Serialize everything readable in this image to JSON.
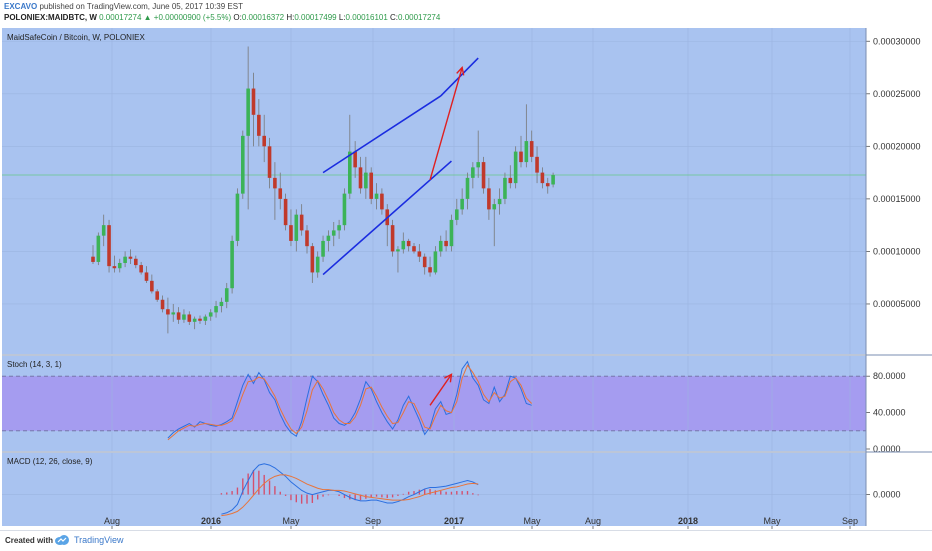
{
  "header": {
    "author": "EXCAVO",
    "published_text": "published on TradingView.com, June 05, 2017 10:39 EST",
    "symbol_info": "POLONIEX:MAIDBTC, W",
    "last": "0.00017274",
    "change": "▲ +0.00000900 (+5.5%)",
    "open_label": "O:",
    "open": "0.00016372",
    "high_label": "H:",
    "high": "0.00017499",
    "low_label": "L:",
    "low": "0.00016101",
    "close_label": "C:",
    "close": "0.00017274"
  },
  "footer": {
    "created_with": "Created with",
    "brand": "TradingView"
  },
  "chart_data": [
    {
      "type": "candlestick",
      "title": "MaidSafeCoin / Bitcoin, W, POLONIEX",
      "x_tick_labels": [
        "Aug",
        "2016",
        "May",
        "Sep",
        "2017",
        "May",
        "Aug",
        "2018",
        "May",
        "Sep"
      ],
      "y_tick_labels": [
        "0.00030000",
        "0.00025000",
        "0.00020000",
        "0.00015000",
        "0.00010000",
        "0.00005000"
      ],
      "ylim": [
        1e-05,
        0.000305
      ],
      "current_price_line": 0.00017274,
      "weeks": [
        {
          "o": 9.5e-05,
          "h": 0.000106,
          "l": 8.8e-05,
          "c": 9e-05
        },
        {
          "o": 9e-05,
          "h": 0.000118,
          "l": 8.7e-05,
          "c": 0.000115
        },
        {
          "o": 0.000115,
          "h": 0.000135,
          "l": 0.000105,
          "c": 0.000125
        },
        {
          "o": 0.000125,
          "h": 0.00013,
          "l": 8e-05,
          "c": 8.6e-05
        },
        {
          "o": 8.6e-05,
          "h": 9.6e-05,
          "l": 8e-05,
          "c": 8.4e-05
        },
        {
          "o": 8.4e-05,
          "h": 9.3e-05,
          "l": 8e-05,
          "c": 8.9e-05
        },
        {
          "o": 8.9e-05,
          "h": 0.0001,
          "l": 8.5e-05,
          "c": 9.5e-05
        },
        {
          "o": 9.5e-05,
          "h": 0.000102,
          "l": 8.8e-05,
          "c": 9.3e-05
        },
        {
          "o": 9.3e-05,
          "h": 9.6e-05,
          "l": 8.4e-05,
          "c": 8.7e-05
        },
        {
          "o": 8.7e-05,
          "h": 9e-05,
          "l": 7.8e-05,
          "c": 8e-05
        },
        {
          "o": 8e-05,
          "h": 8.6e-05,
          "l": 7e-05,
          "c": 7.2e-05
        },
        {
          "o": 7.2e-05,
          "h": 7.8e-05,
          "l": 6e-05,
          "c": 6.2e-05
        },
        {
          "o": 6.2e-05,
          "h": 6.4e-05,
          "l": 5.2e-05,
          "c": 5.4e-05
        },
        {
          "o": 5.4e-05,
          "h": 5.8e-05,
          "l": 4.2e-05,
          "c": 4.5e-05
        },
        {
          "o": 4.5e-05,
          "h": 5.6e-05,
          "l": 2.2e-05,
          "c": 4e-05
        },
        {
          "o": 4e-05,
          "h": 5e-05,
          "l": 3.3e-05,
          "c": 4.2e-05
        },
        {
          "o": 4.2e-05,
          "h": 4.7e-05,
          "l": 3.1e-05,
          "c": 3.5e-05
        },
        {
          "o": 3.5e-05,
          "h": 4.5e-05,
          "l": 3.2e-05,
          "c": 4e-05
        },
        {
          "o": 4e-05,
          "h": 4.3e-05,
          "l": 3e-05,
          "c": 3.3e-05
        },
        {
          "o": 3.3e-05,
          "h": 3.8e-05,
          "l": 2.6e-05,
          "c": 3.6e-05
        },
        {
          "o": 3.6e-05,
          "h": 3.9e-05,
          "l": 3.1e-05,
          "c": 3.4e-05
        },
        {
          "o": 3.4e-05,
          "h": 4e-05,
          "l": 3e-05,
          "c": 3.8e-05
        },
        {
          "o": 3.8e-05,
          "h": 4.5e-05,
          "l": 3.4e-05,
          "c": 4.2e-05
        },
        {
          "o": 4.2e-05,
          "h": 5.3e-05,
          "l": 3.7e-05,
          "c": 4.8e-05
        },
        {
          "o": 4.8e-05,
          "h": 5.6e-05,
          "l": 4.2e-05,
          "c": 5.2e-05
        },
        {
          "o": 5.2e-05,
          "h": 7e-05,
          "l": 4.6e-05,
          "c": 6.5e-05
        },
        {
          "o": 6.5e-05,
          "h": 0.000115,
          "l": 6e-05,
          "c": 0.00011
        },
        {
          "o": 0.00011,
          "h": 0.00016,
          "l": 0.000105,
          "c": 0.000155
        },
        {
          "o": 0.000155,
          "h": 0.000215,
          "l": 0.00015,
          "c": 0.00021
        },
        {
          "o": 0.00021,
          "h": 0.000295,
          "l": 0.00014,
          "c": 0.000255
        },
        {
          "o": 0.000255,
          "h": 0.00027,
          "l": 0.0002,
          "c": 0.00023
        },
        {
          "o": 0.00023,
          "h": 0.000245,
          "l": 0.0002,
          "c": 0.00021
        },
        {
          "o": 0.00021,
          "h": 0.00023,
          "l": 0.000185,
          "c": 0.0002
        },
        {
          "o": 0.0002,
          "h": 0.000208,
          "l": 0.00016,
          "c": 0.00017
        },
        {
          "o": 0.00017,
          "h": 0.000185,
          "l": 0.00013,
          "c": 0.00016
        },
        {
          "o": 0.00016,
          "h": 0.000175,
          "l": 0.00014,
          "c": 0.00015
        },
        {
          "o": 0.00015,
          "h": 0.000155,
          "l": 0.00012,
          "c": 0.000125
        },
        {
          "o": 0.000125,
          "h": 0.00014,
          "l": 0.000105,
          "c": 0.00011
        },
        {
          "o": 0.00011,
          "h": 0.00014,
          "l": 0.0001,
          "c": 0.000135
        },
        {
          "o": 0.000135,
          "h": 0.000145,
          "l": 0.000115,
          "c": 0.00012
        },
        {
          "o": 0.00012,
          "h": 0.000125,
          "l": 9.8e-05,
          "c": 0.000105
        },
        {
          "o": 0.000105,
          "h": 0.000108,
          "l": 7e-05,
          "c": 8e-05
        },
        {
          "o": 8e-05,
          "h": 0.0001,
          "l": 7.5e-05,
          "c": 9.5e-05
        },
        {
          "o": 9.5e-05,
          "h": 0.000115,
          "l": 9e-05,
          "c": 0.00011
        },
        {
          "o": 0.00011,
          "h": 0.00012,
          "l": 0.0001,
          "c": 0.000115
        },
        {
          "o": 0.000115,
          "h": 0.000128,
          "l": 0.000105,
          "c": 0.00012
        },
        {
          "o": 0.00012,
          "h": 0.00013,
          "l": 0.000112,
          "c": 0.000125
        },
        {
          "o": 0.000125,
          "h": 0.00016,
          "l": 0.00012,
          "c": 0.000155
        },
        {
          "o": 0.000155,
          "h": 0.00023,
          "l": 0.00015,
          "c": 0.000195
        },
        {
          "o": 0.000195,
          "h": 0.000205,
          "l": 0.00017,
          "c": 0.00018
        },
        {
          "o": 0.00018,
          "h": 0.00019,
          "l": 0.000155,
          "c": 0.00016
        },
        {
          "o": 0.00016,
          "h": 0.00019,
          "l": 0.00015,
          "c": 0.000175
        },
        {
          "o": 0.000175,
          "h": 0.00018,
          "l": 0.000145,
          "c": 0.00015
        },
        {
          "o": 0.00015,
          "h": 0.000165,
          "l": 0.00014,
          "c": 0.000155
        },
        {
          "o": 0.000155,
          "h": 0.00016,
          "l": 0.000135,
          "c": 0.00014
        },
        {
          "o": 0.00014,
          "h": 0.000145,
          "l": 0.000105,
          "c": 0.000125
        },
        {
          "o": 0.000125,
          "h": 0.00013,
          "l": 9.5e-05,
          "c": 0.0001
        },
        {
          "o": 0.0001,
          "h": 0.000105,
          "l": 8e-05,
          "c": 0.000102
        },
        {
          "o": 0.000102,
          "h": 0.000118,
          "l": 9.8e-05,
          "c": 0.00011
        },
        {
          "o": 0.00011,
          "h": 0.000112,
          "l": 0.0001,
          "c": 0.000105
        },
        {
          "o": 0.000105,
          "h": 0.000108,
          "l": 9.8e-05,
          "c": 0.0001
        },
        {
          "o": 0.0001,
          "h": 0.000107,
          "l": 9e-05,
          "c": 9.5e-05
        },
        {
          "o": 9.5e-05,
          "h": 9.8e-05,
          "l": 7.8e-05,
          "c": 8.5e-05
        },
        {
          "o": 8.5e-05,
          "h": 9.5e-05,
          "l": 7.6e-05,
          "c": 8e-05
        },
        {
          "o": 8e-05,
          "h": 0.000105,
          "l": 7.8e-05,
          "c": 0.0001
        },
        {
          "o": 0.0001,
          "h": 0.000115,
          "l": 9.5e-05,
          "c": 0.00011
        },
        {
          "o": 0.00011,
          "h": 0.00012,
          "l": 0.0001,
          "c": 0.000105
        },
        {
          "o": 0.000105,
          "h": 0.000135,
          "l": 0.0001,
          "c": 0.00013
        },
        {
          "o": 0.00013,
          "h": 0.00015,
          "l": 0.000125,
          "c": 0.00014
        },
        {
          "o": 0.00014,
          "h": 0.00016,
          "l": 0.000135,
          "c": 0.00015
        },
        {
          "o": 0.00015,
          "h": 0.000175,
          "l": 0.00014,
          "c": 0.00017
        },
        {
          "o": 0.00017,
          "h": 0.000185,
          "l": 0.00016,
          "c": 0.00018
        },
        {
          "o": 0.00018,
          "h": 0.000215,
          "l": 0.00017,
          "c": 0.000185
        },
        {
          "o": 0.000185,
          "h": 0.00019,
          "l": 0.000155,
          "c": 0.00016
        },
        {
          "o": 0.00016,
          "h": 0.00017,
          "l": 0.00013,
          "c": 0.00014
        },
        {
          "o": 0.00014,
          "h": 0.00015,
          "l": 0.000105,
          "c": 0.000145
        },
        {
          "o": 0.000145,
          "h": 0.00016,
          "l": 0.000135,
          "c": 0.00015
        },
        {
          "o": 0.00015,
          "h": 0.000175,
          "l": 0.000145,
          "c": 0.00017
        },
        {
          "o": 0.00017,
          "h": 0.000182,
          "l": 0.00016,
          "c": 0.000165
        },
        {
          "o": 0.000165,
          "h": 0.0002,
          "l": 0.00016,
          "c": 0.000195
        },
        {
          "o": 0.000195,
          "h": 0.00021,
          "l": 0.00018,
          "c": 0.000185
        },
        {
          "o": 0.000185,
          "h": 0.00024,
          "l": 0.00018,
          "c": 0.000205
        },
        {
          "o": 0.000205,
          "h": 0.000215,
          "l": 0.000185,
          "c": 0.00019
        },
        {
          "o": 0.00019,
          "h": 0.0002,
          "l": 0.000165,
          "c": 0.000175
        },
        {
          "o": 0.000175,
          "h": 0.00018,
          "l": 0.00016,
          "c": 0.000165
        },
        {
          "o": 0.000165,
          "h": 0.00017,
          "l": 0.000155,
          "c": 0.000162
        },
        {
          "o": 0.0001637,
          "h": 0.000175,
          "l": 0.000161,
          "c": 0.0001727
        }
      ],
      "annotations": {
        "channel_upper": [
          [
            43,
            0.000175
          ],
          [
            65,
            0.000248
          ]
        ],
        "channel_lower": [
          [
            43,
            7.8e-05
          ],
          [
            67,
            0.000186
          ]
        ],
        "channel_upper_extension": [
          [
            65,
            0.000248
          ],
          [
            72,
            0.000284
          ]
        ],
        "arrow": [
          [
            63,
            0.000168
          ],
          [
            69,
            0.000275
          ]
        ]
      }
    },
    {
      "type": "line",
      "title": "Stoch (14, 3, 1)",
      "y_tick_labels": [
        "80.0000",
        "40.0000",
        "0.0000"
      ],
      "ylim": [
        0,
        100
      ],
      "band": [
        20,
        80
      ],
      "start_index": 14,
      "series": [
        {
          "values": [
            12,
            18,
            22,
            25,
            28,
            24,
            30,
            28,
            26,
            25,
            27,
            30,
            34,
            52,
            70,
            82,
            72,
            84,
            76,
            62,
            54,
            38,
            26,
            18,
            14,
            30,
            56,
            80,
            74,
            60,
            48,
            34,
            28,
            26,
            30,
            40,
            55,
            74,
            66,
            52,
            40,
            30,
            22,
            32,
            48,
            58,
            45,
            32,
            16,
            24,
            44,
            52,
            38,
            40,
            60,
            88,
            96,
            78,
            70,
            54,
            50,
            68,
            52,
            60,
            80,
            78,
            66,
            50,
            48
          ]
        },
        {
          "values": [
            10,
            15,
            20,
            23,
            26,
            25,
            27,
            28,
            27,
            26,
            26,
            28,
            31,
            44,
            60,
            74,
            75,
            79,
            77,
            68,
            58,
            44,
            32,
            22,
            17,
            24,
            42,
            65,
            75,
            66,
            54,
            40,
            32,
            28,
            28,
            35,
            48,
            66,
            68,
            58,
            46,
            36,
            28,
            29,
            40,
            52,
            50,
            38,
            24,
            22,
            36,
            48,
            42,
            40,
            52,
            78,
            92,
            84,
            74,
            60,
            52,
            62,
            56,
            58,
            74,
            78,
            70,
            56,
            50
          ]
        }
      ],
      "arrow": [
        [
          63,
          48
        ],
        [
          67,
          82
        ]
      ]
    },
    {
      "type": "line",
      "title": "MACD (12, 26, close, 9)",
      "y_tick_labels": [
        "0.0000"
      ],
      "ylim": [
        -4.2e-05,
        5.5e-05
      ],
      "start_index": 24,
      "series": [
        {
          "values": [
            -2.8e-05,
            -2.6e-05,
            -2.2e-05,
            -1.4e-05,
            5e-06,
            2e-05,
            3.4e-05,
            4.2e-05,
            4.4e-05,
            4.2e-05,
            3.8e-05,
            3.2e-05,
            2.6e-05,
            1.8e-05,
            1.2e-05,
            6e-06,
            2e-06,
            0.0,
            2e-06,
            4e-06,
            6e-06,
            6e-06,
            4e-06,
            0.0,
            -4e-06,
            -7e-06,
            -9e-06,
            -9e-06,
            -8e-06,
            -8e-06,
            -1e-05,
            -1.2e-05,
            -1.2e-05,
            -1e-05,
            -7e-06,
            -3e-06,
            0.0,
            4e-06,
            8e-06,
            1e-05,
            1e-05,
            1.1e-05,
            1.2e-05,
            1.4e-05,
            1.6e-05,
            1.8e-05,
            2e-05,
            1.8e-05,
            1.4e-05
          ]
        },
        {
          "values": [
            -3e-05,
            -2.9e-05,
            -2.7e-05,
            -2.4e-05,
            -1.8e-05,
            -1e-05,
            -1e-06,
            8e-06,
            1.6e-05,
            2.2e-05,
            2.6e-05,
            2.8e-05,
            2.8e-05,
            2.6e-05,
            2.3e-05,
            1.9e-05,
            1.5e-05,
            1.2e-05,
            9e-06,
            7e-06,
            7e-06,
            6e-06,
            6e-06,
            5e-06,
            3e-06,
            1e-06,
            -1e-06,
            -3e-06,
            -4e-06,
            -5e-06,
            -6e-06,
            -7e-06,
            -8e-06,
            -8e-06,
            -8e-06,
            -7e-06,
            -5e-06,
            -3e-06,
            0.0,
            2e-06,
            4e-06,
            6e-06,
            8e-06,
            1e-05,
            1.1e-05,
            1.3e-05,
            1.5e-05,
            1.6e-05,
            1.5e-05
          ]
        }
      ]
    }
  ]
}
